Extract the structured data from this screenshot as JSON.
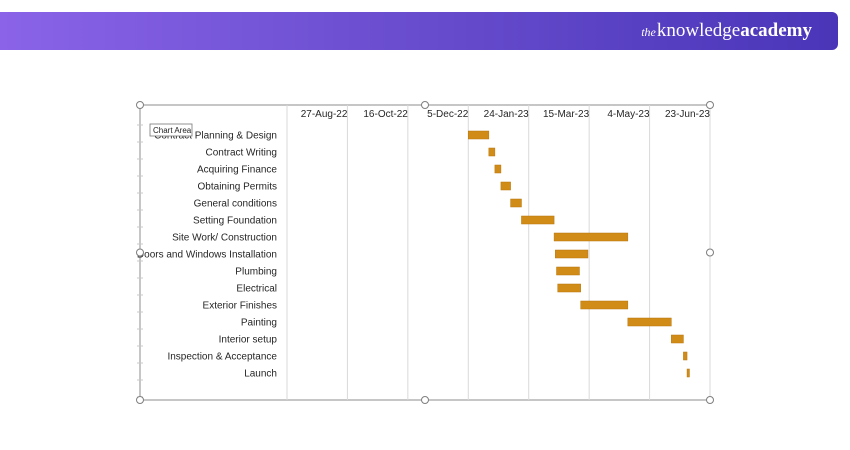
{
  "header": {
    "brand_prefix": "the",
    "brand_word1": "knowledge",
    "brand_word2": "academy"
  },
  "colors": {
    "banner_start": "#8a63e8",
    "banner_end": "#4a35b8",
    "bar": "#d18b17",
    "bar_edge": "#b8760c",
    "grid": "#d9d9d9"
  },
  "chart_data": {
    "type": "bar",
    "subtype": "gantt",
    "tooltip": "Chart Area",
    "x_axis_position": "top",
    "x_ticks": [
      "27-Aug-22",
      "16-Oct-22",
      "5-Dec-22",
      "24-Jan-23",
      "15-Mar-23",
      "4-May-23",
      "23-Jun-23"
    ],
    "xlim": [
      "2022-07-08",
      "2023-06-23"
    ],
    "grid": true,
    "tasks": [
      {
        "name": "Contract Planning & Design",
        "start": "2022-12-05",
        "end": "2022-12-22"
      },
      {
        "name": "Contract Writing",
        "start": "2022-12-22",
        "end": "2022-12-27"
      },
      {
        "name": "Acquiring Finance",
        "start": "2022-12-27",
        "end": "2023-01-01"
      },
      {
        "name": "Obtaining Permits",
        "start": "2023-01-01",
        "end": "2023-01-09"
      },
      {
        "name": "General conditions",
        "start": "2023-01-09",
        "end": "2023-01-18"
      },
      {
        "name": "Setting Foundation",
        "start": "2023-01-18",
        "end": "2023-02-14"
      },
      {
        "name": "Site Work/ Construction",
        "start": "2023-02-14",
        "end": "2023-04-16"
      },
      {
        "name": "Doors and Windows Installation",
        "start": "2023-02-15",
        "end": "2023-03-14"
      },
      {
        "name": "Plumbing",
        "start": "2023-02-16",
        "end": "2023-03-07"
      },
      {
        "name": "Electrical",
        "start": "2023-02-17",
        "end": "2023-03-08"
      },
      {
        "name": "Exterior Finishes",
        "start": "2023-03-08",
        "end": "2023-04-16"
      },
      {
        "name": "Painting",
        "start": "2023-04-16",
        "end": "2023-05-22"
      },
      {
        "name": "Interior setup",
        "start": "2023-05-22",
        "end": "2023-06-01"
      },
      {
        "name": "Inspection & Acceptance",
        "start": "2023-06-01",
        "end": "2023-06-04"
      },
      {
        "name": "Launch",
        "start": "2023-06-04",
        "end": "2023-06-06"
      }
    ]
  }
}
